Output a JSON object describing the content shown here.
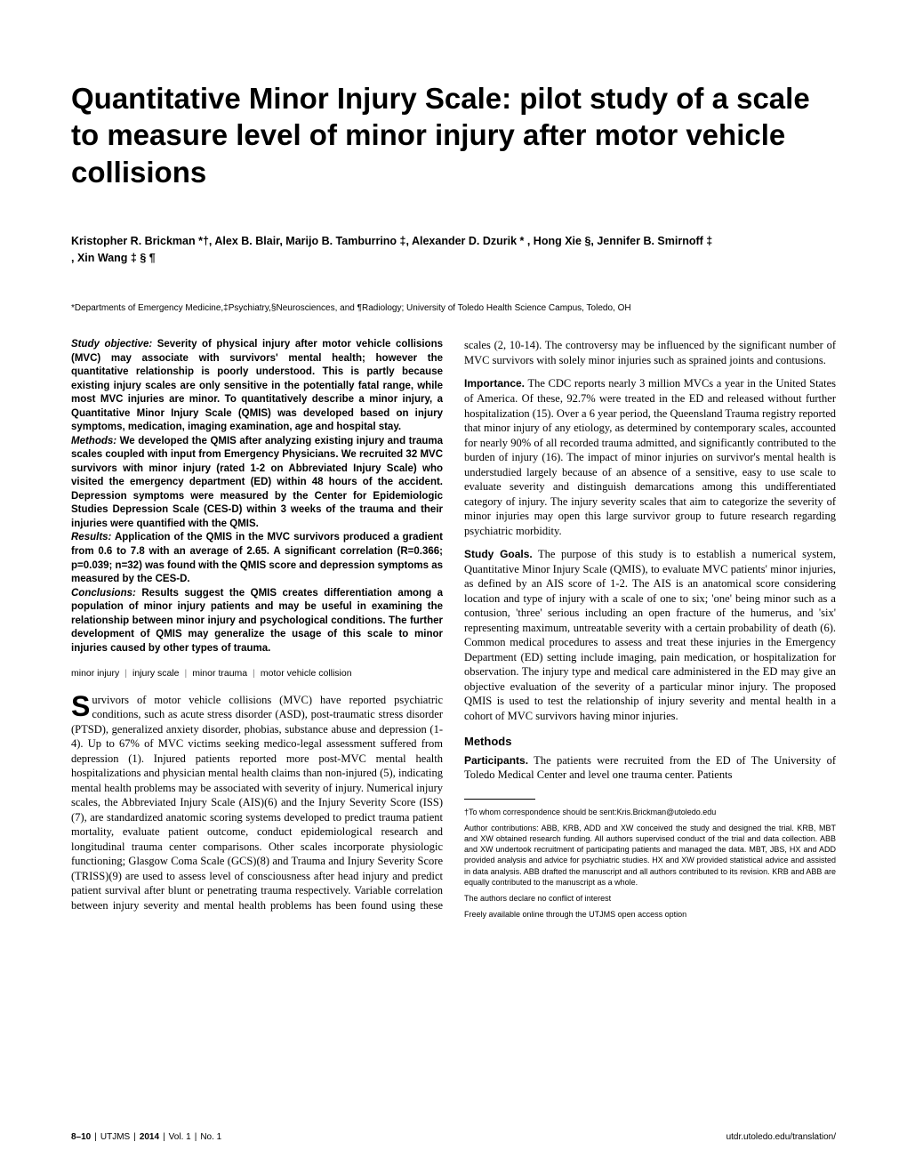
{
  "title": "Quantitative Minor Injury Scale: pilot study of a scale to measure level of minor injury after motor vehicle collisions",
  "authors_line1": "Kristopher R. Brickman *†, Alex B. Blair, Marijo B. Tamburrino ‡, Alexander D. Dzurik * , Hong Xie §, Jennifer B. Smirnoff ‡",
  "authors_line2": ", Xin Wang ‡ § ¶",
  "affiliations": "*Departments of Emergency Medicine,‡Psychiatry,§Neurosciences, and ¶Radiology; University of Toledo Health Science Campus, Toledo, OH",
  "abstract": {
    "objective_label": "Study objective:",
    "objective": " Severity of physical injury after motor vehicle collisions (MVC) may associate with survivors' mental health; however the quantitative relationship is poorly understood. This is partly because existing injury scales are only sensitive in the potentially fatal range, while most MVC injuries are minor. To quantitatively describe a minor injury, a Quantitative Minor Injury Scale (QMIS) was developed based on injury symptoms, medication, imaging examination, age and hospital stay.",
    "methods_label": "Methods:",
    "methods": " We developed the QMIS after analyzing existing injury and trauma scales coupled with input from Emergency Physicians. We recruited 32 MVC survivors with minor injury (rated 1-2 on Abbreviated Injury Scale) who visited the emergency department (ED) within 48 hours of the accident. Depression symptoms were measured by the Center for Epidemiologic Studies Depression Scale (CES-D) within 3 weeks of the trauma and their injuries were quantified with the QMIS.",
    "results_label": "Results:",
    "results": " Application of the QMIS in the MVC survivors produced a gradient from 0.6 to 7.8 with an average of 2.65. A significant correlation (R=0.366; p=0.039; n=32) was found with the QMIS score and depression symptoms as measured by the CES-D.",
    "conclusions_label": "Conclusions:",
    "conclusions": " Results suggest the QMIS creates differentiation among a population of minor injury patients and may be useful in examining the relationship between minor injury and psychological conditions. The further development of QMIS may generalize the usage of this scale to minor injuries caused by other types of trauma."
  },
  "keywords": [
    "minor injury",
    "injury scale",
    "minor trauma",
    "motor vehicle collision"
  ],
  "body": {
    "intro_first": "urvivors of motor vehicle collisions (MVC) have reported psychiatric conditions, such as acute stress disorder (ASD), post-traumatic stress disorder (PTSD), generalized anxiety disorder, phobias, substance abuse and depression (1-4). Up to 67% of MVC victims seeking medico-legal assessment suffered from depression (1). Injured patients reported more post-MVC mental health hospitalizations and physician mental health claims than non-injured (5), indicating mental health problems may be associated with severity of injury. Numerical injury scales, the Abbreviated Injury Scale (AIS)(6) and the Injury Severity Score (ISS)(7), are standardized anatomic scoring systems developed to predict trauma patient mortality, evaluate patient outcome, conduct epidemiological research and longitudinal trauma center comparisons. Other scales incorporate physiologic functioning; Glasgow Coma Scale (GCS)(8) and Trauma and Injury Severity Score (TRISS)(9) are used to assess level of consciousness after head injury and predict patient survival after blunt or penetrating trauma respectively. Variable correlation between injury severity and mental health problems has been found using these scales (2, 10-14). The controversy may be influenced by the significant number of MVC survivors with solely minor injuries such as sprained joints and contusions.",
    "importance_label": "Importance.",
    "importance": " The CDC reports nearly 3 million MVCs a year in the United States of America. Of these, 92.7% were treated in the ED and released without further hospitalization (15). Over a 6 year period, the Queensland Trauma registry reported that minor injury of any etiology, as determined by contemporary scales, accounted for nearly 90% of all recorded trauma admitted, and significantly contributed to the burden of injury (16). The impact of minor injuries on survivor's mental health is understudied largely because of an absence of a sensitive, easy to use scale to evaluate severity and distinguish demarcations among this undifferentiated category of injury. The injury severity scales that aim to categorize the severity of minor injuries may open this large survivor group to future research regarding psychiatric morbidity.",
    "goals_label": "Study Goals.",
    "goals": " The purpose of this study is to establish a numerical system, Quantitative Minor Injury Scale (QMIS), to evaluate MVC patients' minor injuries, as defined by an AIS score of 1-2. The AIS is an anatomical score considering location and type of injury with a scale of one to six; 'one' being minor such as a contusion, 'three' serious including an open fracture of the humerus, and 'six' representing maximum, untreatable severity with a certain probability of death (6). Common medical procedures to assess and treat these injuries in the Emergency Department (ED) setting include imaging, pain medication, or hospitalization for observation. The injury type and medical care administered in the ED may give an objective evaluation of the severity of a particular minor injury. The proposed QMIS is used to test the relationship of injury severity and mental health in a cohort of MVC survivors having minor injuries.",
    "methods_head": "Methods",
    "participants_label": "Participants.",
    "participants": " The patients were recruited from the ED of The University of Toledo Medical Center and level one trauma center. Patients"
  },
  "footnotes": {
    "corr": "†To whom correspondence should be sent:Kris.Brickman@utoledo.edu",
    "contrib": "Author contributions: ABB, KRB, ADD and XW conceived the study and designed the trial. KRB, MBT and XW obtained research funding. All authors supervised conduct of the trial and data collection. ABB and XW undertook recruitment of participating patients and managed the data. MBT, JBS, HX and ADD provided analysis and advice for psychiatric studies. HX and XW provided statistical advice and assisted in data analysis. ABB drafted the manuscript and all authors contributed to its revision. KRB and ABB are equally contributed to the manuscript as a whole.",
    "conflict": "The authors declare no conflict of interest",
    "access": "Freely available online through the UTJMS open access option"
  },
  "footer": {
    "left_pages": "8–10",
    "left_journal": "UTJMS",
    "left_year": "2014",
    "left_vol": "Vol. 1",
    "left_no": "No. 1",
    "right": "utdr.utoledo.edu/translation/"
  }
}
